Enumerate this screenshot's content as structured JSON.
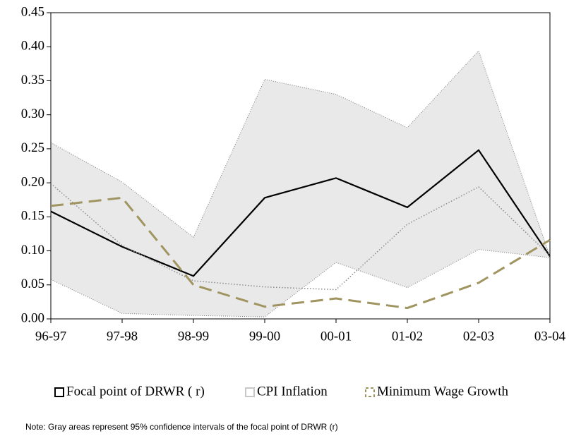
{
  "chart_data": {
    "type": "line",
    "categories": [
      "96-97",
      "97-98",
      "98-99",
      "99-00",
      "00-01",
      "01-02",
      "02-03",
      "03-04"
    ],
    "band": {
      "color": "#e4e4e4",
      "upper": [
        0.259,
        0.201,
        0.12,
        0.352,
        0.33,
        0.281,
        0.394,
        0.092
      ],
      "lower": [
        0.058,
        0.008,
        0.005,
        0.003,
        0.083,
        0.046,
        0.102,
        0.09
      ]
    },
    "series": [
      {
        "name": "Focal point of DRWR  ( r)",
        "color": "#000000",
        "style": "solid",
        "values": [
          0.158,
          0.106,
          0.063,
          0.178,
          0.207,
          0.164,
          0.248,
          0.092
        ]
      },
      {
        "name": "CPI Inflation",
        "color": "#8c8c8c",
        "style": "dotted",
        "values": [
          0.199,
          0.108,
          0.056,
          0.047,
          0.043,
          0.139,
          0.194,
          0.093
        ]
      },
      {
        "name": "Minimum Wage Growth",
        "color": "#a09560",
        "style": "dashed",
        "values": [
          0.166,
          0.178,
          0.05,
          0.018,
          0.03,
          0.016,
          0.053,
          0.116
        ]
      }
    ],
    "ylim": [
      0,
      0.45
    ],
    "yticks": [
      {
        "value": 0,
        "label": "0.00"
      },
      {
        "value": 0.05,
        "label": "0.05"
      },
      {
        "value": 0.1,
        "label": "0.10"
      },
      {
        "value": 0.15,
        "label": "0.15"
      },
      {
        "value": 0.2,
        "label": "0.20"
      },
      {
        "value": 0.25,
        "label": "0.25"
      },
      {
        "value": 0.3,
        "label": "0.30"
      },
      {
        "value": 0.35,
        "label": "0.35"
      },
      {
        "value": 0.4,
        "label": "0.40"
      },
      {
        "value": 0.45,
        "label": "0.45"
      }
    ],
    "note": "Note: Gray areas represent 95% confidence intervals of the focal point of DRWR (r)"
  }
}
